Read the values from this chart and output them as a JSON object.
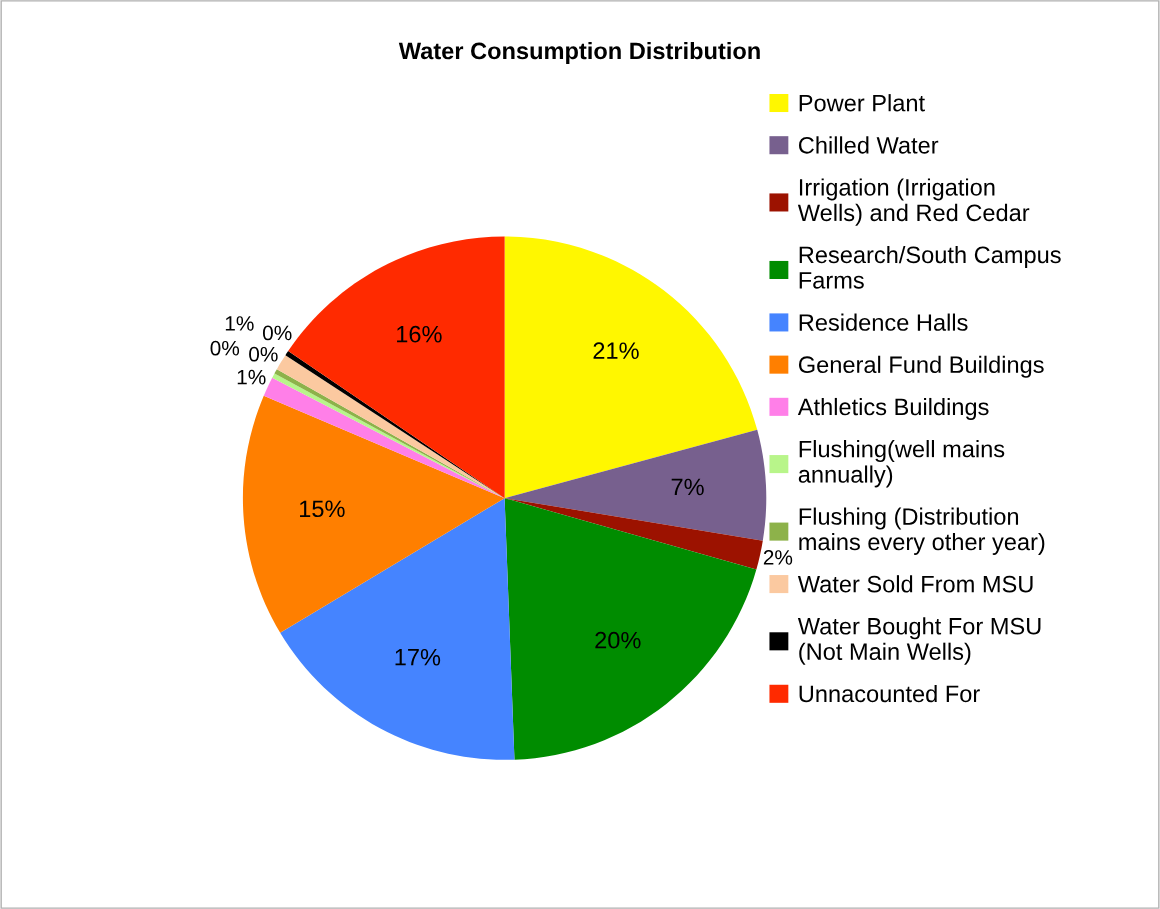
{
  "chart_data": {
    "type": "pie",
    "title": "Water Consumption Distribution",
    "categories": [
      "Power Plant",
      "Chilled Water",
      "Irrigation (Irrigation Wells) and Red Cedar",
      "Research/South Campus Farms",
      "Residence Halls",
      "General Fund Buildings",
      "Athletics Buildings",
      "Flushing(well mains annually)",
      "Flushing (Distribution mains every other year)",
      "Water Sold From MSU",
      "Water Bought For MSU (Not Main Wells)",
      "Unnacounted For"
    ],
    "values": [
      20.8,
      6.8,
      1.8,
      20.0,
      17.0,
      15.0,
      1.2,
      0.3,
      0.3,
      1.0,
      0.3,
      15.5
    ],
    "value_labels": [
      "21%",
      "7%",
      "2%",
      "20%",
      "17%",
      "15%",
      "1%",
      "0%",
      "0%",
      "1%",
      "0%",
      "16%"
    ],
    "colors": [
      "#fff700",
      "#77608e",
      "#9c1200",
      "#008c00",
      "#4584ff",
      "#ff7f00",
      "#ff7fe8",
      "#b8f58a",
      "#8db24a",
      "#fbc9a0",
      "#000000",
      "#ff2a00"
    ],
    "legend": "right"
  }
}
